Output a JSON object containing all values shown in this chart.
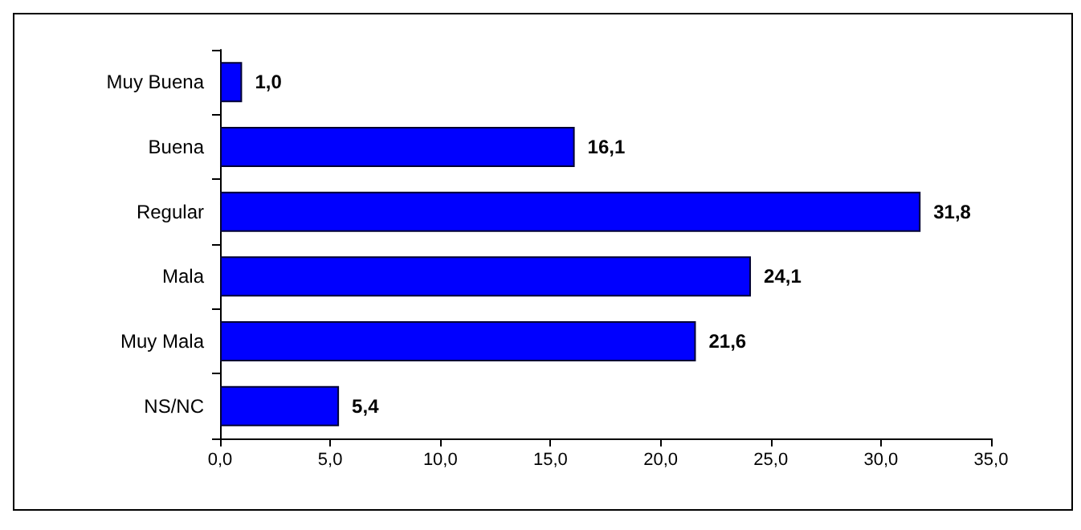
{
  "chart_data": {
    "type": "bar",
    "orientation": "horizontal",
    "categories": [
      "Muy Buena",
      "Buena",
      "Regular",
      "Mala",
      "Muy Mala",
      "NS/NC"
    ],
    "values": [
      1.0,
      16.1,
      31.8,
      24.1,
      21.6,
      5.4
    ],
    "value_labels": [
      "1,0",
      "16,1",
      "31,8",
      "24,1",
      "21,6",
      "5,4"
    ],
    "color": "#0000ff",
    "xlim": [
      0,
      35
    ],
    "xticks": [
      {
        "value": 0,
        "label": "0,0"
      },
      {
        "value": 5,
        "label": "5,0"
      },
      {
        "value": 10,
        "label": "10,0"
      },
      {
        "value": 15,
        "label": "15,0"
      },
      {
        "value": 20,
        "label": "20,0"
      },
      {
        "value": 25,
        "label": "25,0"
      },
      {
        "value": 30,
        "label": "30,0"
      },
      {
        "value": 35,
        "label": "35,0"
      }
    ],
    "grid": false
  }
}
